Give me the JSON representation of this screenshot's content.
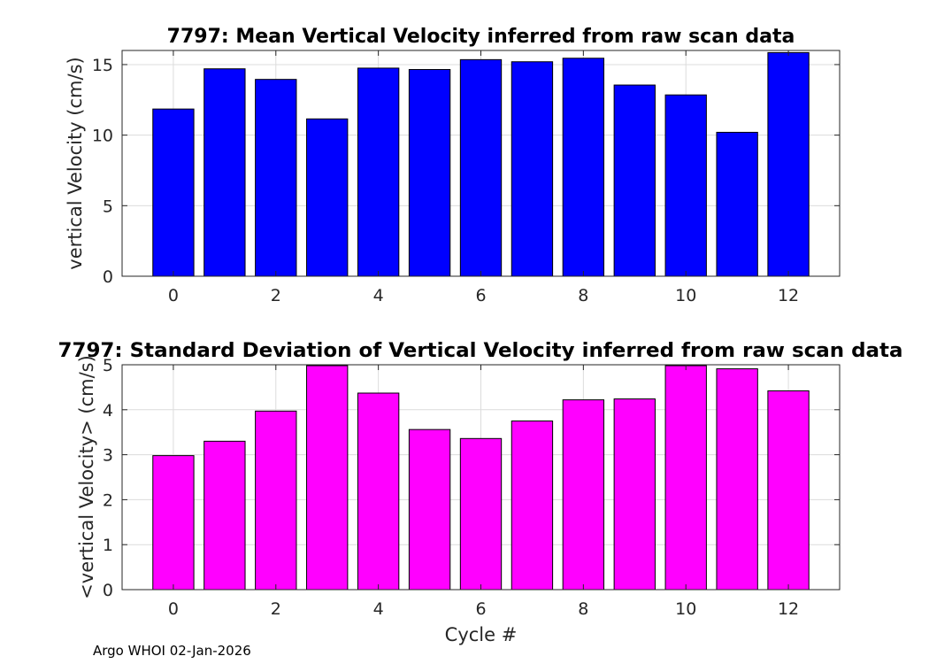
{
  "chart_data": [
    {
      "type": "bar",
      "title": "7797: Mean Vertical Velocity inferred from raw scan data",
      "xlabel": "",
      "ylabel": "vertical Velocity (cm/s)",
      "x": [
        0,
        1,
        2,
        3,
        4,
        5,
        6,
        7,
        8,
        9,
        10,
        11,
        12
      ],
      "values": [
        11.85,
        14.7,
        13.95,
        11.15,
        14.75,
        14.65,
        15.35,
        15.2,
        15.45,
        13.55,
        12.85,
        10.2,
        15.85
      ],
      "xlim": [
        -1,
        13
      ],
      "ylim": [
        0,
        16
      ],
      "xticks": [
        0,
        2,
        4,
        6,
        8,
        10,
        12
      ],
      "yticks": [
        0,
        5,
        10,
        15
      ],
      "bar_color": "#0000ff",
      "grid": true
    },
    {
      "type": "bar",
      "title": "7797: Standard Deviation of Vertical Velocity inferred from raw scan data",
      "xlabel": "Cycle #",
      "ylabel": "<vertical Velocity> (cm/s)",
      "x": [
        0,
        1,
        2,
        3,
        4,
        5,
        6,
        7,
        8,
        9,
        10,
        11,
        12
      ],
      "values": [
        2.98,
        3.3,
        3.97,
        4.98,
        4.37,
        3.56,
        3.36,
        3.75,
        4.22,
        4.24,
        4.98,
        4.91,
        4.42
      ],
      "xlim": [
        -1,
        13
      ],
      "ylim": [
        0,
        5
      ],
      "xticks": [
        0,
        2,
        4,
        6,
        8,
        10,
        12
      ],
      "yticks": [
        0,
        1,
        2,
        3,
        4,
        5
      ],
      "bar_color": "#ff00ff",
      "grid": true
    }
  ],
  "footer": {
    "text": "Argo WHOI 02-Jan-2026"
  }
}
